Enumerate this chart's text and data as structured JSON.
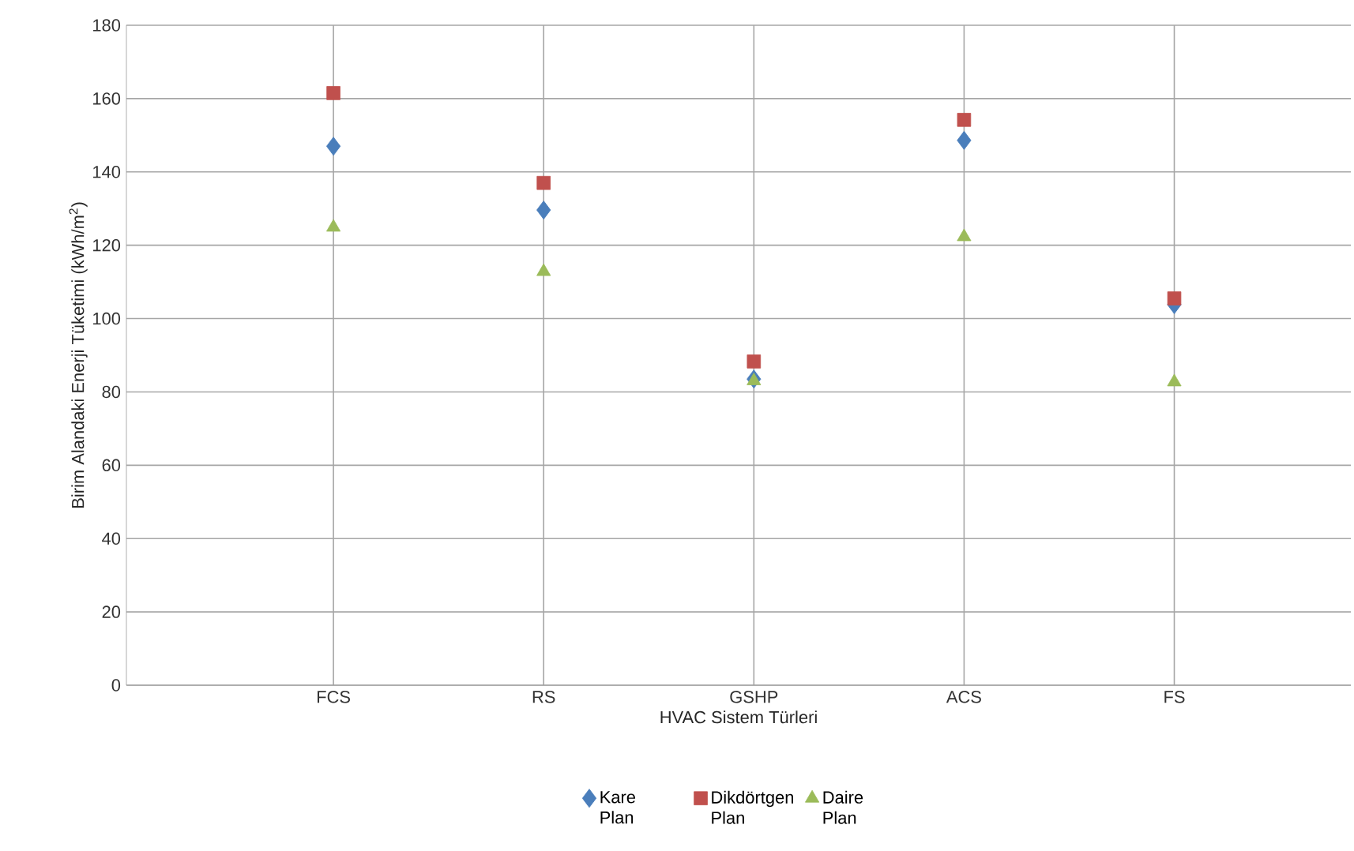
{
  "chart_data": {
    "type": "scatter",
    "xlabel": "HVAC Sistem Türleri",
    "ylabel": "Birim Alandaki Enerji Tüketimi (kWh/m$^{2}$)",
    "categories": [
      "FCS",
      "RS",
      "GSHP",
      "ACS",
      "FS"
    ],
    "series": [
      {
        "name": "Kare Plan",
        "color": "#4a7ebb",
        "marker": "diamond",
        "values": [
          147,
          129.6,
          83.5,
          148.6,
          103.8
        ]
      },
      {
        "name": "Dikdörtgen Plan",
        "color": "#c0504d",
        "marker": "square",
        "values": [
          161.5,
          137,
          88.3,
          154.2,
          105.5
        ]
      },
      {
        "name": "Daire Plan",
        "color": "#9bbb59",
        "marker": "triangle",
        "values": [
          124.9,
          112.8,
          83,
          122.3,
          82.7
        ]
      }
    ],
    "ylim": [
      0,
      180
    ],
    "yticks": [
      0,
      20,
      40,
      60,
      80,
      100,
      120,
      140,
      160,
      180
    ],
    "grid": true,
    "legend": "bottom"
  }
}
